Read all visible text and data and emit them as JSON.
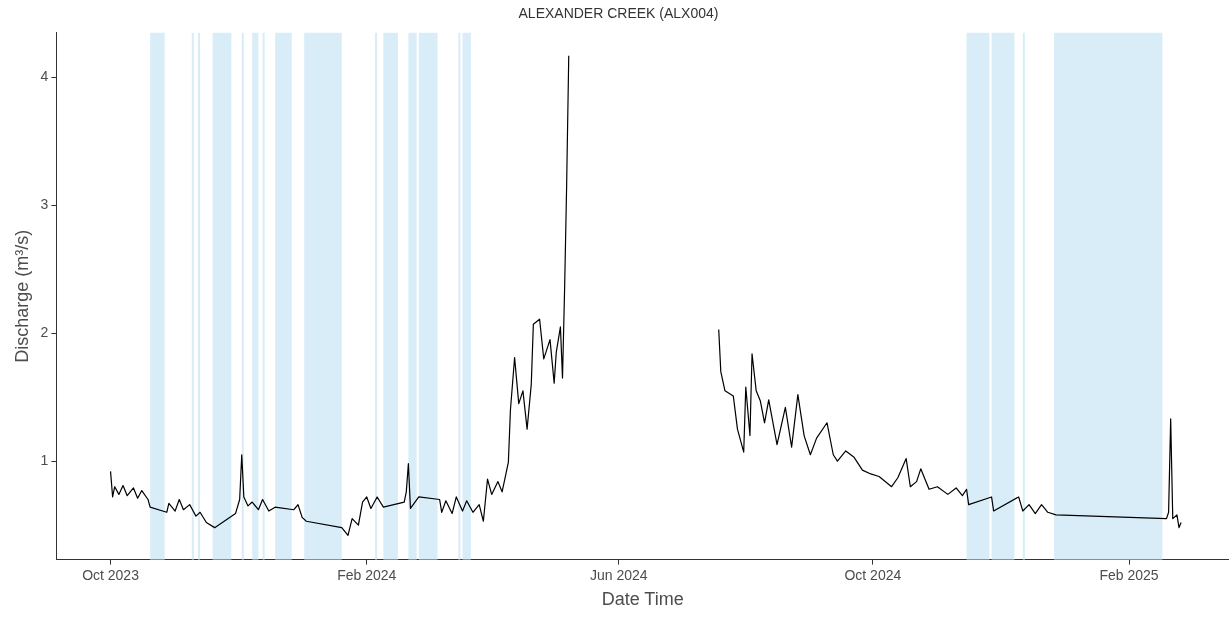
{
  "chart_data": {
    "type": "line",
    "title": "ALEXANDER CREEK (ALX004)",
    "xlabel": "Date Time",
    "ylabel": "Discharge (m³/s)",
    "grid": false,
    "xlim": [
      "2023-09-05",
      "2025-03-21"
    ],
    "xticks": [
      {
        "value": "2023-10-01",
        "label": "Oct 2023"
      },
      {
        "value": "2024-02-01",
        "label": "Feb 2024"
      },
      {
        "value": "2024-06-01",
        "label": "Jun 2024"
      },
      {
        "value": "2024-10-01",
        "label": "Oct 2024"
      },
      {
        "value": "2025-02-01",
        "label": "Feb 2025"
      }
    ],
    "ylim": [
      0.23,
      4.35
    ],
    "yticks": [
      1,
      2,
      3,
      4
    ],
    "bands": [
      {
        "axis": "x",
        "from": "2023-10-20",
        "to": "2023-10-27",
        "color": "#d9edf8"
      },
      {
        "axis": "x",
        "from": "2023-11-09",
        "to": "2023-11-10",
        "color": "#d9edf8"
      },
      {
        "axis": "x",
        "from": "2023-11-12",
        "to": "2023-11-13",
        "color": "#d9edf8"
      },
      {
        "axis": "x",
        "from": "2023-11-19",
        "to": "2023-11-28",
        "color": "#d9edf8"
      },
      {
        "axis": "x",
        "from": "2023-12-03",
        "to": "2023-12-04",
        "color": "#d9edf8"
      },
      {
        "axis": "x",
        "from": "2023-12-08",
        "to": "2023-12-11",
        "color": "#d9edf8"
      },
      {
        "axis": "x",
        "from": "2023-12-13",
        "to": "2023-12-14",
        "color": "#d9edf8"
      },
      {
        "axis": "x",
        "from": "2023-12-19",
        "to": "2023-12-27",
        "color": "#d9edf8"
      },
      {
        "axis": "x",
        "from": "2024-01-02",
        "to": "2024-01-20",
        "color": "#d9edf8"
      },
      {
        "axis": "x",
        "from": "2024-02-05",
        "to": "2024-02-06",
        "color": "#d9edf8"
      },
      {
        "axis": "x",
        "from": "2024-02-09",
        "to": "2024-02-16",
        "color": "#d9edf8"
      },
      {
        "axis": "x",
        "from": "2024-02-21",
        "to": "2024-02-25",
        "color": "#d9edf8"
      },
      {
        "axis": "x",
        "from": "2024-02-26",
        "to": "2024-03-06",
        "color": "#d9edf8"
      },
      {
        "axis": "x",
        "from": "2024-03-16",
        "to": "2024-03-17",
        "color": "#d9edf8"
      },
      {
        "axis": "x",
        "from": "2024-03-18",
        "to": "2024-03-22",
        "color": "#d9edf8"
      },
      {
        "axis": "x",
        "from": "2024-11-15",
        "to": "2024-11-26",
        "color": "#d9edf8"
      },
      {
        "axis": "x",
        "from": "2024-11-27",
        "to": "2024-12-08",
        "color": "#d9edf8"
      },
      {
        "axis": "x",
        "from": "2024-12-12",
        "to": "2024-12-13",
        "color": "#d9edf8"
      },
      {
        "axis": "x",
        "from": "2024-12-27",
        "to": "2025-02-17",
        "color": "#d9edf8"
      }
    ],
    "series": [
      {
        "color": "#000000",
        "x": [
          "2023-10-01",
          "2023-10-02",
          "2023-10-03",
          "2023-10-05",
          "2023-10-07",
          "2023-10-09",
          "2023-10-12",
          "2023-10-14",
          "2023-10-16",
          "2023-10-19",
          "2023-10-20",
          "2023-10-28",
          "2023-10-29",
          "2023-11-01",
          "2023-11-03",
          "2023-11-05",
          "2023-11-08",
          "2023-11-11",
          "2023-11-13",
          "2023-11-16",
          "2023-11-20",
          "2023-11-30",
          "2023-12-02",
          "2023-12-03",
          "2023-12-04",
          "2023-12-06",
          "2023-12-08",
          "2023-12-11",
          "2023-12-13",
          "2023-12-16",
          "2023-12-19",
          "2023-12-28",
          "2023-12-30",
          "2024-01-01",
          "2024-01-03",
          "2024-01-20",
          "2024-01-23",
          "2024-01-25",
          "2024-01-28",
          "2024-01-30",
          "2024-02-01",
          "2024-02-03",
          "2024-02-06",
          "2024-02-09",
          "2024-02-19",
          "2024-02-20",
          "2024-02-21",
          "2024-02-22",
          "2024-02-26",
          "2024-03-07",
          "2024-03-08",
          "2024-03-10",
          "2024-03-13",
          "2024-03-15",
          "2024-03-18",
          "2024-03-20",
          "2024-03-23",
          "2024-03-26",
          "2024-03-28",
          "2024-03-30",
          "2024-04-01",
          "2024-04-04",
          "2024-04-06",
          "2024-04-09",
          "2024-04-10",
          "2024-04-12",
          "2024-04-14",
          "2024-04-16",
          "2024-04-18",
          "2024-04-20",
          "2024-04-21",
          "2024-04-24",
          "2024-04-26",
          "2024-04-29",
          "2024-05-01",
          "2024-05-02",
          "2024-05-04",
          "2024-05-05",
          "2024-05-06",
          "2024-05-07",
          "2024-05-08",
          "2024-06-15",
          "2024-07-19",
          "2024-07-20",
          "2024-07-22",
          "2024-07-26",
          "2024-07-28",
          "2024-07-31",
          "2024-08-01",
          "2024-08-03",
          "2024-08-04",
          "2024-08-06",
          "2024-08-08",
          "2024-08-10",
          "2024-08-12",
          "2024-08-16",
          "2024-08-20",
          "2024-08-23",
          "2024-08-26",
          "2024-08-29",
          "2024-09-01",
          "2024-09-04",
          "2024-09-09",
          "2024-09-12",
          "2024-09-14",
          "2024-09-18",
          "2024-09-22",
          "2024-09-26",
          "2024-09-30",
          "2024-10-04",
          "2024-10-10",
          "2024-10-13",
          "2024-10-17",
          "2024-10-19",
          "2024-10-22",
          "2024-10-24",
          "2024-10-28",
          "2024-11-01",
          "2024-11-06",
          "2024-11-10",
          "2024-11-13",
          "2024-11-15",
          "2024-11-16",
          "2024-11-27",
          "2024-11-28",
          "2024-12-10",
          "2024-12-12",
          "2024-12-15",
          "2024-12-18",
          "2024-12-21",
          "2024-12-24",
          "2024-12-28",
          "2025-02-19",
          "2025-02-20",
          "2025-02-21",
          "2025-02-22",
          "2025-02-24",
          "2025-02-25",
          "2025-02-26"
        ],
        "values": [
          0.92,
          0.72,
          0.8,
          0.74,
          0.81,
          0.73,
          0.79,
          0.71,
          0.77,
          0.7,
          0.64,
          0.6,
          0.67,
          0.61,
          0.7,
          0.62,
          0.66,
          0.57,
          0.6,
          0.52,
          0.48,
          0.59,
          0.7,
          1.05,
          0.72,
          0.65,
          0.68,
          0.62,
          0.7,
          0.61,
          0.64,
          0.62,
          0.66,
          0.56,
          0.53,
          0.48,
          0.42,
          0.55,
          0.5,
          0.68,
          0.72,
          0.63,
          0.72,
          0.64,
          0.68,
          0.76,
          0.98,
          0.63,
          0.72,
          0.7,
          0.6,
          0.69,
          0.59,
          0.72,
          0.61,
          0.69,
          0.6,
          0.66,
          0.53,
          0.86,
          0.74,
          0.84,
          0.76,
          0.99,
          1.4,
          1.81,
          1.45,
          1.55,
          1.25,
          1.6,
          2.07,
          2.11,
          1.8,
          1.95,
          1.61,
          1.85,
          2.05,
          1.65,
          2.34,
          3.17,
          4.17,
          null,
          2.03,
          1.7,
          1.55,
          1.51,
          1.25,
          1.07,
          1.58,
          1.2,
          1.84,
          1.55,
          1.47,
          1.3,
          1.48,
          1.13,
          1.42,
          1.11,
          1.52,
          1.2,
          1.05,
          1.18,
          1.3,
          1.05,
          1.0,
          1.08,
          1.03,
          0.93,
          0.9,
          0.88,
          0.8,
          0.87,
          1.02,
          0.8,
          0.84,
          0.94,
          0.78,
          0.8,
          0.74,
          0.79,
          0.73,
          0.78,
          0.66,
          0.72,
          0.61,
          0.72,
          0.61,
          0.66,
          0.59,
          0.66,
          0.6,
          0.58,
          0.55,
          0.6,
          1.33,
          0.55,
          0.58,
          0.48,
          0.52
        ]
      }
    ]
  }
}
